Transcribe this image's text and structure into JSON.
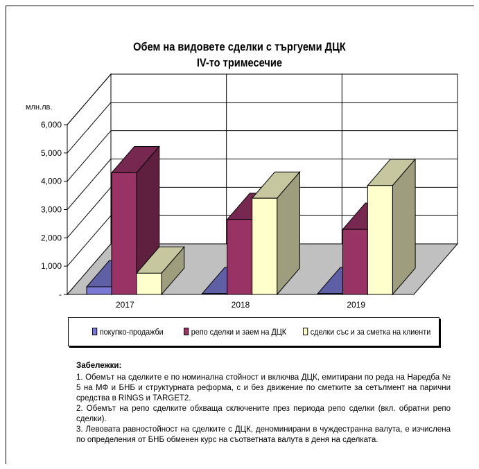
{
  "chart_data": {
    "type": "bar",
    "title": "Обем на видовете сделки с търгуеми ДЦК",
    "subtitle": "IV-то тримесечие",
    "ylabel": "млн.лв.",
    "categories": [
      "2017",
      "2018",
      "2019"
    ],
    "series": [
      {
        "name": "покупко-продажби",
        "values": [
          270,
          30,
          30
        ],
        "color": "#7a7ad4"
      },
      {
        "name": "репо сделки и заем на ДЦК",
        "values": [
          4300,
          2650,
          2300
        ],
        "color": "#993366"
      },
      {
        "name": "сделки със и за сметка на клиенти",
        "values": [
          750,
          3400,
          3850
        ],
        "color": "#ffffcc"
      }
    ],
    "y_ticks": [
      "-",
      "1,000",
      "2,000",
      "3,000",
      "4,000",
      "5,000",
      "6,000"
    ],
    "ylim": [
      0,
      6000
    ],
    "grid": true,
    "legend_position": "bottom"
  },
  "notes": {
    "title": "Забележки:",
    "items": [
      "1. Обемът на сделките е по номинална стойност и включва ДЦК, емитирани по реда на Наредба № 5 на МФ и БНБ и структурната реформа, с и без движение по сметките за сетълмент на парични средства в RINGS и TARGET2.",
      "2.  Обемът на репо сделките обхваща сключените през периода репо сделки (вкл. обратни репо сделки).",
      "3. Левовата равностойност на сделките с ДЦК, деноминирани в чуждестранна валута, е изчислена по определения от БНБ обменен курс на съответната валута в деня на сделката."
    ]
  }
}
